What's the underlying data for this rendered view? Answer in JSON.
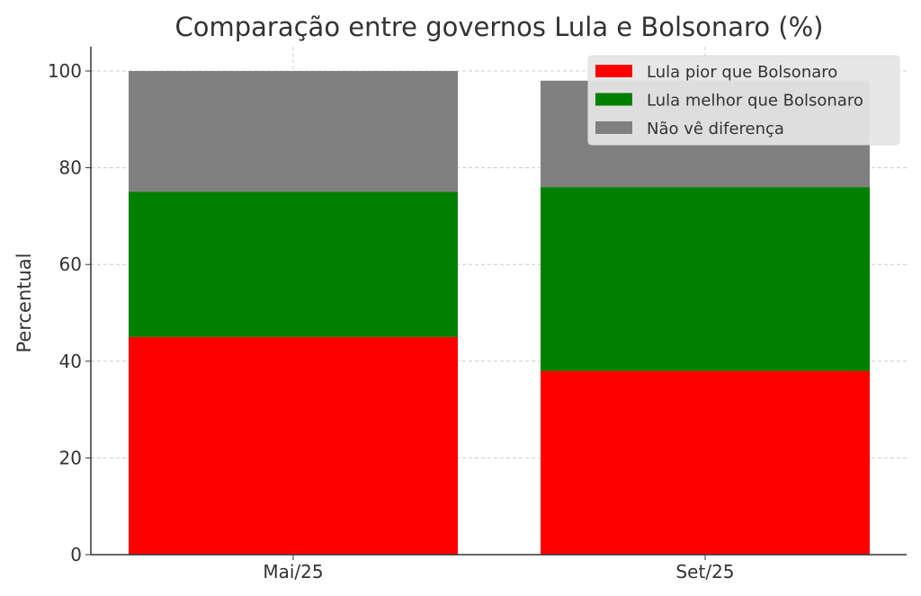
{
  "chart_data": {
    "type": "bar",
    "stacked": true,
    "title": "Comparação entre governos Lula e Bolsonaro (%)",
    "xlabel": "",
    "ylabel": "Percentual",
    "ylim": [
      0,
      105
    ],
    "yticks": [
      0,
      20,
      40,
      60,
      80,
      100
    ],
    "grid": true,
    "legend_position": "top-right",
    "categories": [
      "Mai/25",
      "Set/25"
    ],
    "series": [
      {
        "name": "Lula pior que Bolsonaro",
        "color": "#ff0000",
        "values": [
          45,
          38
        ]
      },
      {
        "name": "Lula melhor que Bolsonaro",
        "color": "#008000",
        "values": [
          30,
          38
        ]
      },
      {
        "name": "Não vê diferença",
        "color": "#808080",
        "values": [
          25,
          22
        ]
      }
    ]
  }
}
